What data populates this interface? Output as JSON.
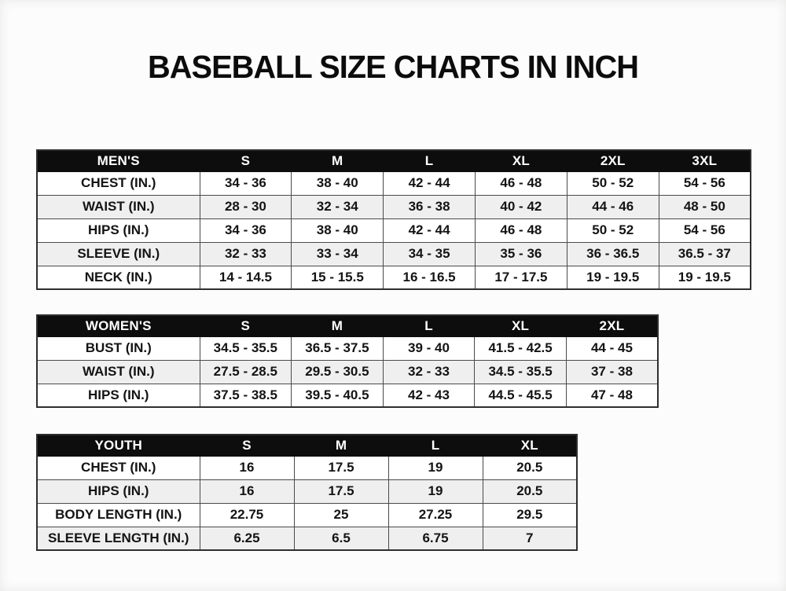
{
  "page": {
    "title": "BASEBALL SIZE CHARTS IN INCH",
    "colors": {
      "page_bg": "#fcfcfc",
      "header_bg": "#0d0d0d",
      "header_text": "#ffffff",
      "cell_text": "#141414",
      "alt_row_bg": "#efefef",
      "border": "#4a4a4a"
    }
  },
  "chart_data": [
    {
      "type": "table",
      "name": "mens",
      "title": "MEN'S",
      "header": [
        "MEN'S",
        "S",
        "M",
        "L",
        "XL",
        "2XL",
        "3XL"
      ],
      "rows": [
        [
          "CHEST (IN.)",
          "34 - 36",
          "38 - 40",
          "42 - 44",
          "46 - 48",
          "50 - 52",
          "54 - 56"
        ],
        [
          "WAIST (IN.)",
          "28 - 30",
          "32 - 34",
          "36 - 38",
          "40 - 42",
          "44 - 46",
          "48 - 50"
        ],
        [
          "HIPS (IN.)",
          "34 - 36",
          "38 - 40",
          "42 - 44",
          "46 - 48",
          "50 - 52",
          "54 - 56"
        ],
        [
          "SLEEVE (IN.)",
          "32 - 33",
          "33 - 34",
          "34 - 35",
          "35 - 36",
          "36 - 36.5",
          "36.5 - 37"
        ],
        [
          "NECK (IN.)",
          "14 - 14.5",
          "15 - 15.5",
          "16 - 16.5",
          "17 - 17.5",
          "19 - 19.5",
          "19 - 19.5"
        ]
      ]
    },
    {
      "type": "table",
      "name": "womens",
      "title": "WOMEN'S",
      "header": [
        "WOMEN'S",
        "S",
        "M",
        "L",
        "XL",
        "2XL"
      ],
      "rows": [
        [
          "BUST (IN.)",
          "34.5 - 35.5",
          "36.5 - 37.5",
          "39 - 40",
          "41.5 - 42.5",
          "44 - 45"
        ],
        [
          "WAIST (IN.)",
          "27.5 - 28.5",
          "29.5 - 30.5",
          "32 - 33",
          "34.5 - 35.5",
          "37 - 38"
        ],
        [
          "HIPS (IN.)",
          "37.5 - 38.5",
          "39.5 - 40.5",
          "42 - 43",
          "44.5 - 45.5",
          "47 - 48"
        ]
      ]
    },
    {
      "type": "table",
      "name": "youth",
      "title": "YOUTH",
      "header": [
        "YOUTH",
        "S",
        "M",
        "L",
        "XL"
      ],
      "rows": [
        [
          "CHEST (IN.)",
          "16",
          "17.5",
          "19",
          "20.5"
        ],
        [
          "HIPS (IN.)",
          "16",
          "17.5",
          "19",
          "20.5"
        ],
        [
          "BODY LENGTH (IN.)",
          "22.75",
          "25",
          "27.25",
          "29.5"
        ],
        [
          "SLEEVE LENGTH (IN.)",
          "6.25",
          "6.5",
          "6.75",
          "7"
        ]
      ]
    }
  ]
}
